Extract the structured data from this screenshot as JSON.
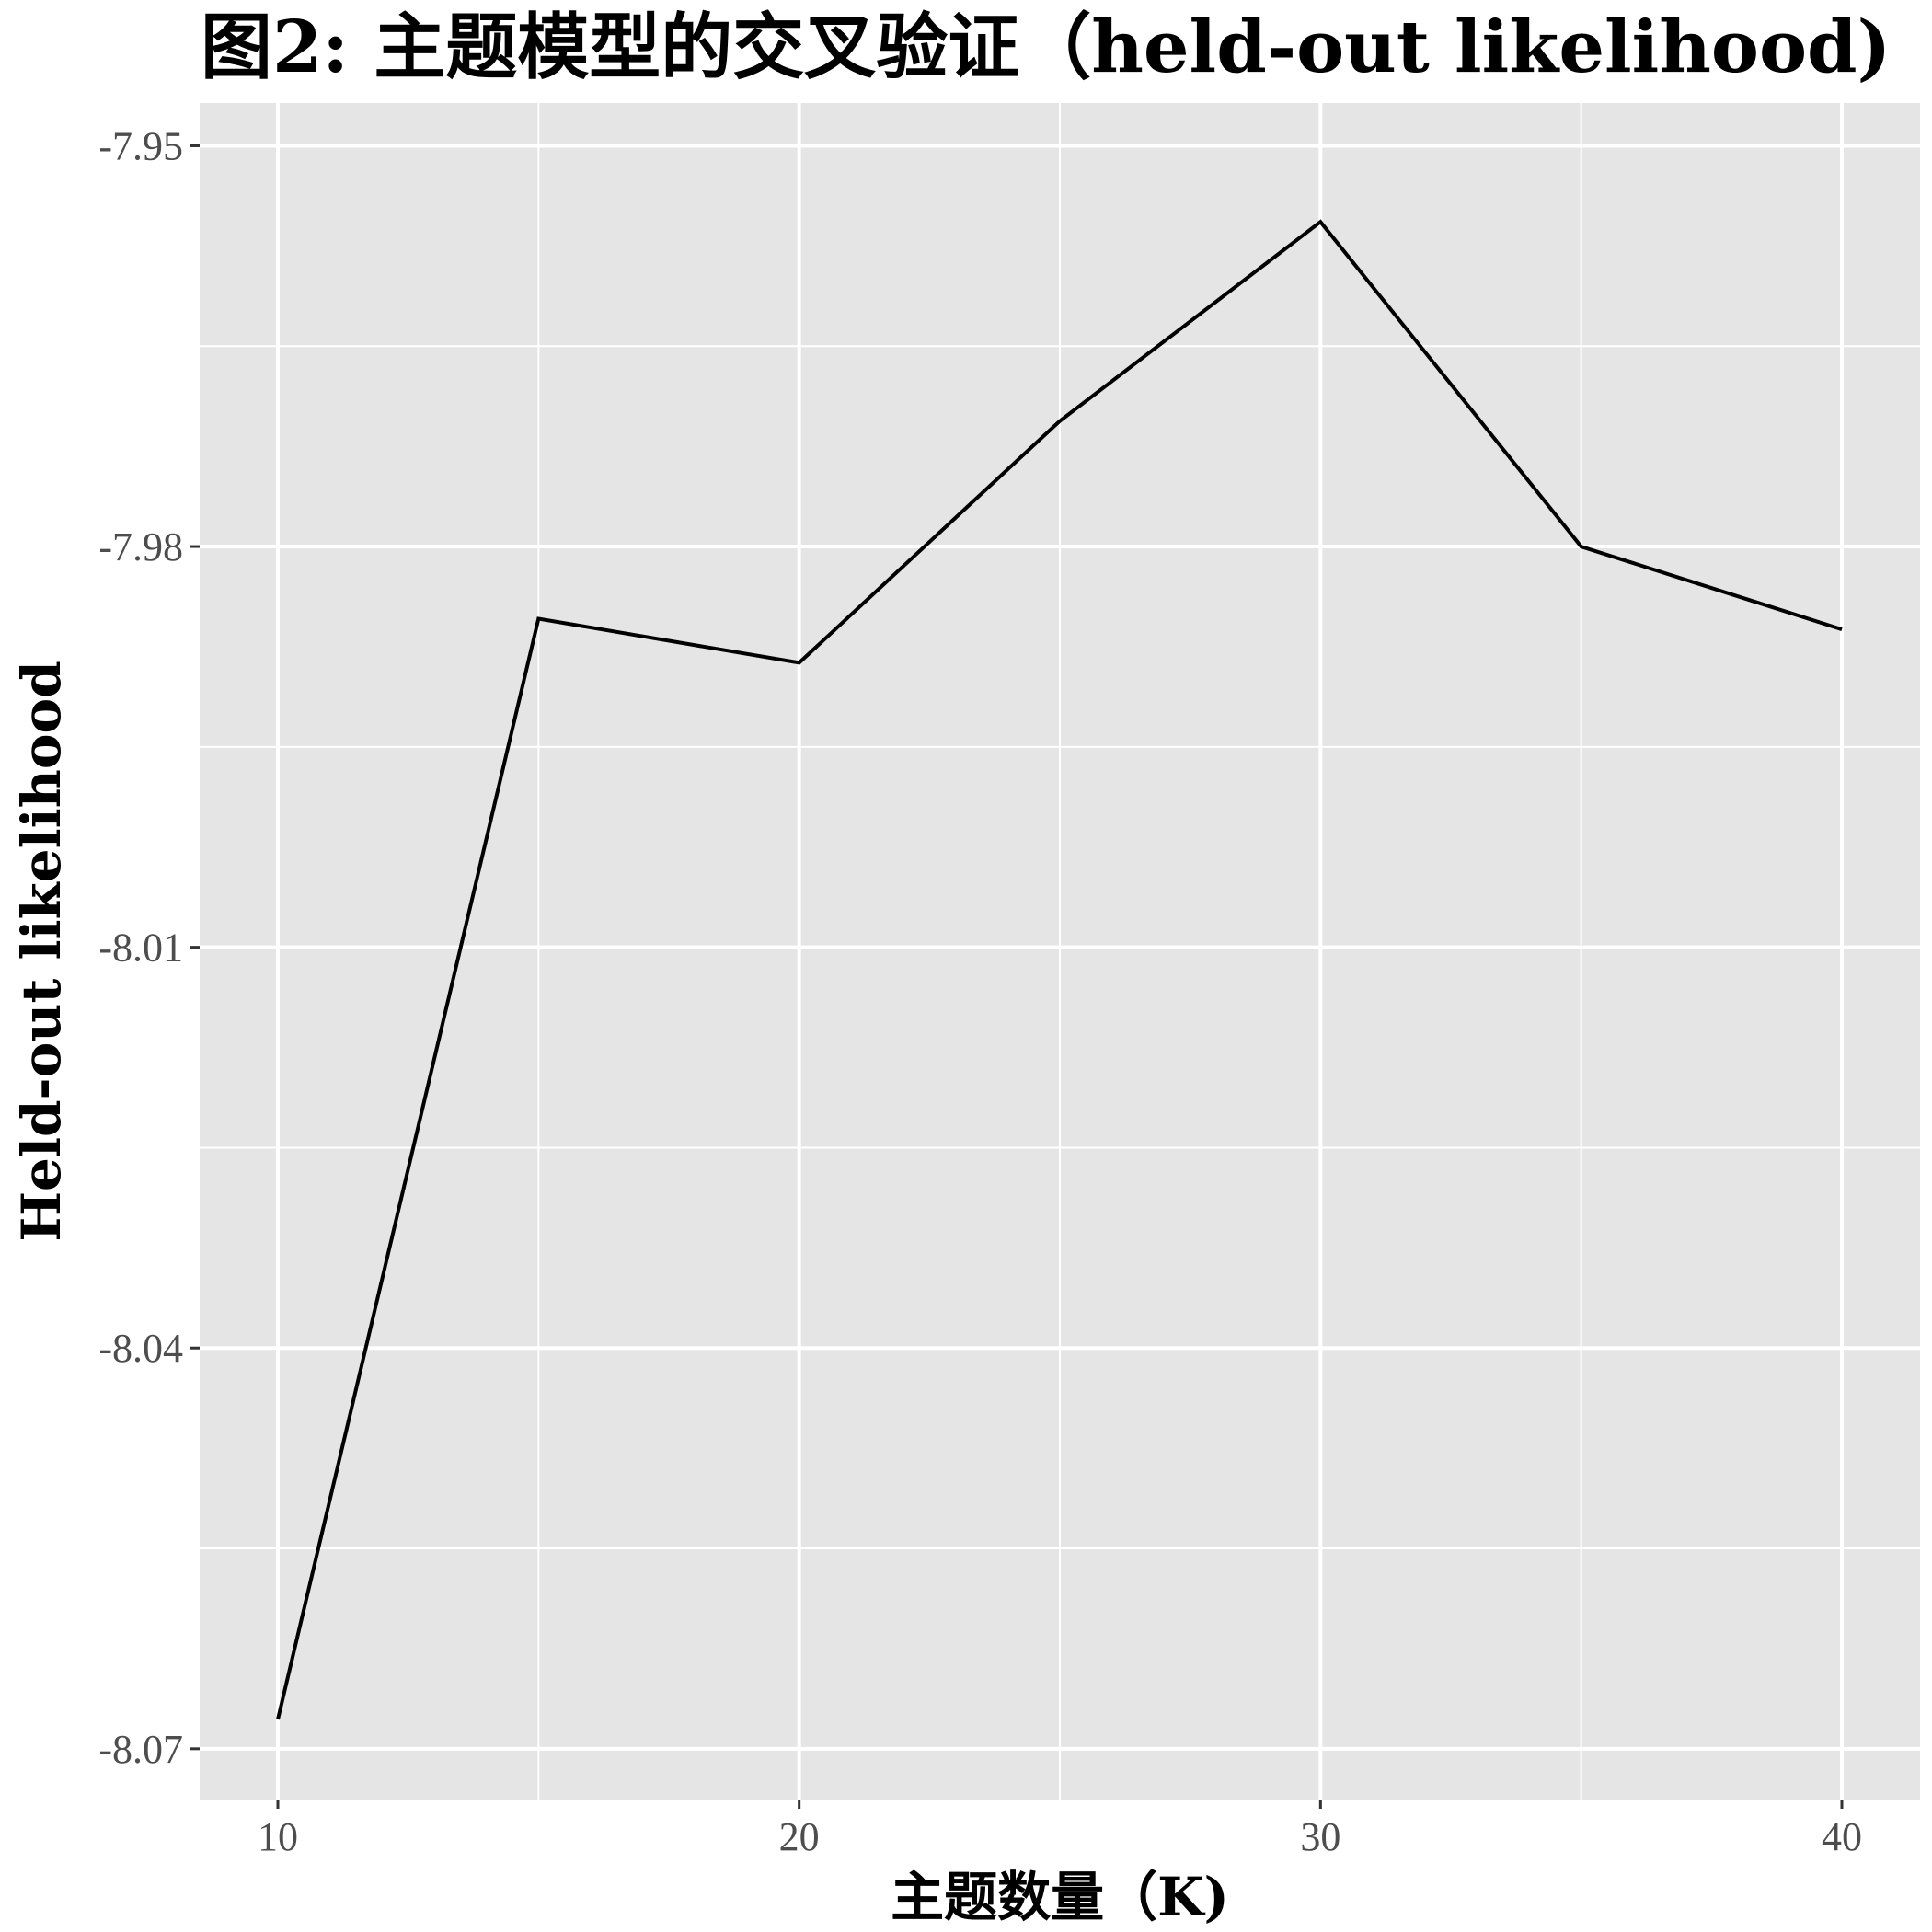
{
  "chart_data": {
    "type": "line",
    "title": "图2: 主题模型的交叉验证（held-out likelihood)",
    "xlabel": "主题数量（K)",
    "ylabel": "Held-out likelihood",
    "x": [
      10,
      15,
      20,
      25,
      30,
      35,
      40
    ],
    "series": [
      {
        "values": [
          -8.0678,
          -7.9854,
          -7.9887,
          -7.9706,
          -7.9557,
          -7.98,
          -7.9862
        ]
      }
    ],
    "xlim": [
      8.5,
      41.5
    ],
    "ylim": [
      -8.0738,
      -7.9468
    ],
    "x_ticks": [
      10,
      20,
      30,
      40
    ],
    "x_tick_labels": [
      "10",
      "20",
      "30",
      "40"
    ],
    "y_ticks": [
      -7.95,
      -7.98,
      -8.01,
      -8.04,
      -8.07
    ],
    "y_tick_labels": [
      "-7.95",
      "-7.98",
      "-8.01",
      "-8.04",
      "-8.07"
    ],
    "grid": true,
    "colors": {
      "panel": "#e5e5e5",
      "grid": "#ffffff",
      "line": "#000000",
      "tick": "#4d4d4d"
    }
  }
}
